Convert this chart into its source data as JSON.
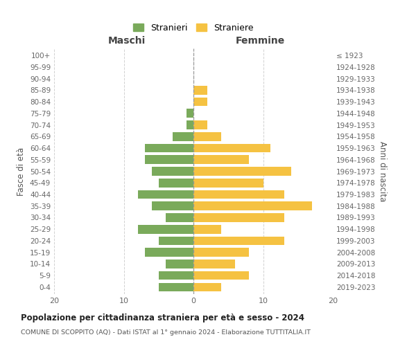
{
  "age_groups": [
    "0-4",
    "5-9",
    "10-14",
    "15-19",
    "20-24",
    "25-29",
    "30-34",
    "35-39",
    "40-44",
    "45-49",
    "50-54",
    "55-59",
    "60-64",
    "65-69",
    "70-74",
    "75-79",
    "80-84",
    "85-89",
    "90-94",
    "95-99",
    "100+"
  ],
  "birth_years": [
    "2019-2023",
    "2014-2018",
    "2009-2013",
    "2004-2008",
    "1999-2003",
    "1994-1998",
    "1989-1993",
    "1984-1988",
    "1979-1983",
    "1974-1978",
    "1969-1973",
    "1964-1968",
    "1959-1963",
    "1954-1958",
    "1949-1953",
    "1944-1948",
    "1939-1943",
    "1934-1938",
    "1929-1933",
    "1924-1928",
    "≤ 1923"
  ],
  "maschi": [
    5,
    5,
    4,
    7,
    5,
    8,
    4,
    6,
    8,
    5,
    6,
    7,
    7,
    3,
    1,
    1,
    0,
    0,
    0,
    0,
    0
  ],
  "femmine": [
    4,
    8,
    6,
    8,
    13,
    4,
    13,
    17,
    13,
    10,
    14,
    8,
    11,
    4,
    2,
    0,
    2,
    2,
    0,
    0,
    0
  ],
  "color_maschi": "#7aaa5b",
  "color_femmine": "#f5c242",
  "title": "Popolazione per cittadinanza straniera per età e sesso - 2024",
  "subtitle": "COMUNE DI SCOPPITO (AQ) - Dati ISTAT al 1° gennaio 2024 - Elaborazione TUTTITALIA.IT",
  "xlabel_left": "Maschi",
  "xlabel_right": "Femmine",
  "ylabel_left": "Fasce di età",
  "ylabel_right": "Anni di nascita",
  "legend_maschi": "Stranieri",
  "legend_femmine": "Straniere",
  "xlim": 20,
  "background_color": "#ffffff",
  "grid_color": "#cccccc"
}
